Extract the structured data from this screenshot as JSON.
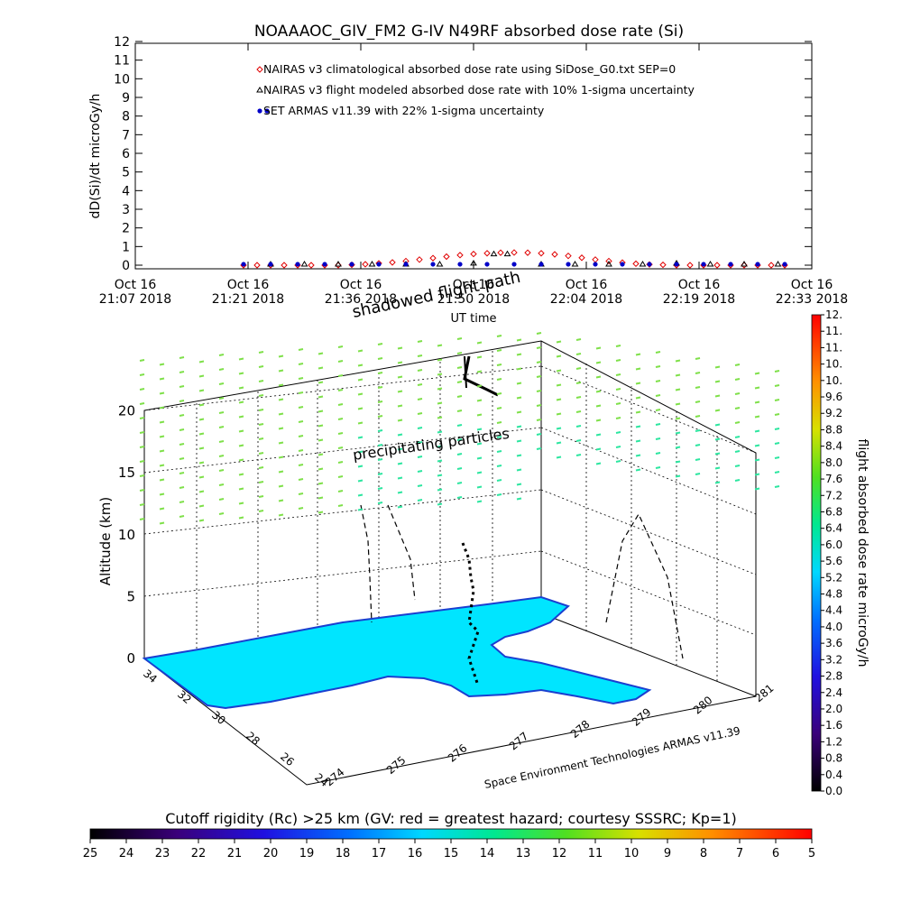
{
  "chart_data": [
    {
      "type": "scatter",
      "title": "NOAAAOC_GIV_FM2 G-IV    N49RF  absorbed dose rate (Si)",
      "xlabel": "UT time",
      "ylabel": "dD(Si)/dt microGy/h",
      "ylim": [
        0,
        12
      ],
      "y_ticks": [
        "0",
        "1",
        "2",
        "3",
        "4",
        "5",
        "6",
        "7",
        "8",
        "9",
        "10",
        "11",
        "12"
      ],
      "x_ticks": [
        {
          "top": "Oct 16",
          "bottom": "21:07 2018"
        },
        {
          "top": "Oct 16",
          "bottom": "21:21 2018"
        },
        {
          "top": "Oct 16",
          "bottom": "21:36 2018"
        },
        {
          "top": "Oct 16",
          "bottom": "21:50 2018"
        },
        {
          "top": "Oct 16",
          "bottom": "22:04 2018"
        },
        {
          "top": "Oct 16",
          "bottom": "22:19 2018"
        },
        {
          "top": "Oct 16",
          "bottom": "22:33 2018"
        }
      ],
      "legend_placement": "top",
      "series": [
        {
          "name": "NAIRAS v3 climatological absorbed dose rate using SiDose_G0.txt SEP=0",
          "marker": "diamond",
          "color": "#e00000",
          "x_frac": [
            0.16,
            0.18,
            0.2,
            0.22,
            0.24,
            0.26,
            0.28,
            0.3,
            0.32,
            0.34,
            0.36,
            0.38,
            0.4,
            0.42,
            0.44,
            0.46,
            0.48,
            0.5,
            0.52,
            0.54,
            0.56,
            0.58,
            0.6,
            0.62,
            0.64,
            0.66,
            0.68,
            0.7,
            0.72,
            0.74,
            0.76,
            0.78,
            0.8,
            0.82,
            0.84,
            0.86,
            0.88,
            0.9,
            0.92,
            0.94,
            0.96
          ],
          "values": [
            0,
            0,
            0,
            0,
            0,
            0,
            0,
            0,
            0.02,
            0.05,
            0.1,
            0.15,
            0.22,
            0.3,
            0.38,
            0.46,
            0.54,
            0.6,
            0.64,
            0.67,
            0.68,
            0.67,
            0.64,
            0.58,
            0.5,
            0.4,
            0.3,
            0.22,
            0.14,
            0.08,
            0.04,
            0.02,
            0,
            0,
            0,
            0,
            0,
            0,
            0,
            0,
            0
          ]
        },
        {
          "name": "NAIRAS v3 flight modeled absorbed dose rate with 10% 1-sigma uncertainty",
          "marker": "triangle",
          "color": "#000000",
          "x_frac": [
            0.2,
            0.25,
            0.3,
            0.35,
            0.4,
            0.45,
            0.5,
            0.53,
            0.55,
            0.6,
            0.65,
            0.7,
            0.75,
            0.8,
            0.85,
            0.9,
            0.95
          ],
          "values": [
            0.05,
            0.05,
            0.05,
            0.05,
            0.05,
            0.05,
            0.1,
            0.6,
            0.6,
            0.05,
            0.05,
            0.05,
            0.05,
            0.1,
            0.05,
            0.05,
            0.05
          ]
        },
        {
          "name": "SET ARMAS v11.39 with 22% 1-sigma uncertainty",
          "marker": "circle",
          "color": "#0000c8",
          "x_frac": [
            0.16,
            0.2,
            0.24,
            0.28,
            0.32,
            0.36,
            0.4,
            0.44,
            0.48,
            0.52,
            0.56,
            0.6,
            0.64,
            0.68,
            0.72,
            0.76,
            0.8,
            0.84,
            0.88,
            0.92,
            0.96
          ],
          "values": [
            0.05,
            0.05,
            0.05,
            0.05,
            0.05,
            0.05,
            0.05,
            0.05,
            0.05,
            0.05,
            0.05,
            0.05,
            0.05,
            0.05,
            0.05,
            0.05,
            0.05,
            0.05,
            0.05,
            0.05,
            0.05
          ]
        }
      ]
    },
    {
      "type": "scatter",
      "title": "",
      "zlabel": "Altitude (km)",
      "z_ticks": [
        "0",
        "5",
        "10",
        "15",
        "20"
      ],
      "y_ticks": [
        "34",
        "32",
        "30",
        "28",
        "26",
        "24"
      ],
      "x_ticks": [
        "274",
        "275",
        "276",
        "277",
        "278",
        "279",
        "280",
        "281"
      ],
      "annotations": {
        "shadowed": "shadowed flight path",
        "precip": "precipitating particles",
        "credit": "Space Environment Technologies ARMAS v11.39"
      },
      "colorbar": {
        "label": "flight absorbed dose rate microGy/h",
        "ticks": [
          "0.0",
          "0.4",
          "0.8",
          "1.2",
          "1.6",
          "2.0",
          "2.4",
          "2.8",
          "3.2",
          "3.6",
          "4.0",
          "4.4",
          "4.8",
          "5.2",
          "5.6",
          "6.0",
          "6.4",
          "6.8",
          "7.2",
          "7.6",
          "8.0",
          "8.4",
          "8.8",
          "9.2",
          "9.6",
          "10.",
          "10.",
          "11.",
          "11.",
          "12."
        ]
      },
      "map_color": "#00e5ff",
      "particle_colors": [
        "#7fe04a",
        "#2de6a0"
      ]
    },
    {
      "type": "heatmap",
      "title": "Cutoff rigidity (Rc) >25 km (GV: red = greatest hazard; courtesy SSSRC; Kp=1)",
      "ticks": [
        "25",
        "24",
        "23",
        "22",
        "21",
        "20",
        "19",
        "18",
        "17",
        "16",
        "15",
        "14",
        "13",
        "12",
        "11",
        "10",
        "9",
        "8",
        "7",
        "6",
        "5"
      ]
    }
  ]
}
